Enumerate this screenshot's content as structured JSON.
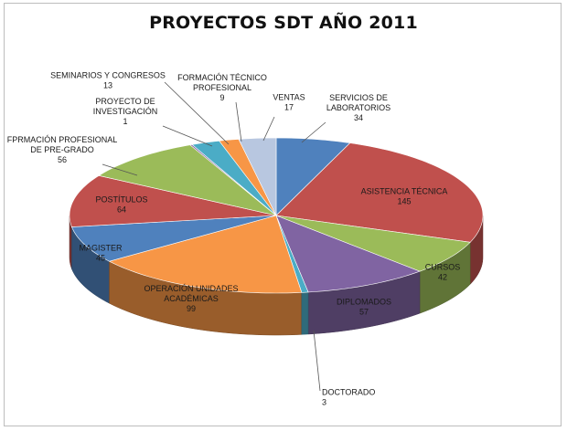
{
  "chart_data": {
    "type": "pie",
    "title": "PROYECTOS SDT AÑO 2011",
    "slices": [
      {
        "label": [
          "SERVICIOS DE",
          "LABORATORIOS"
        ],
        "value": 34,
        "value_text": "34",
        "color": "#4f81bd"
      },
      {
        "label": [
          "ASISTENCIA TÉCNICA"
        ],
        "value": 145,
        "value_text": "145",
        "color": "#c0504d"
      },
      {
        "label": [
          "CURSOS"
        ],
        "value": 42,
        "value_text": "42",
        "color": "#9bbb59"
      },
      {
        "label": [
          "DIPLOMADOS"
        ],
        "value": 57,
        "value_text": "57",
        "color": "#8064a2"
      },
      {
        "label": [
          "DOCTORADO"
        ],
        "value": 3,
        "value_text": "3",
        "color": "#4bacc6"
      },
      {
        "label": [
          "OPERACIÓN UNIDADES",
          "ACADÉMICAS"
        ],
        "value": 99,
        "value_text": "99",
        "color": "#f79646"
      },
      {
        "label": [
          "MAGISTER"
        ],
        "value": 45,
        "value_text": "45",
        "color": "#4f81bd"
      },
      {
        "label": [
          "POSTÍTULOS"
        ],
        "value": 64,
        "value_text": "64",
        "color": "#c0504d"
      },
      {
        "label": [
          "FPRMACIÓN PROFESIONAL",
          "DE PRE-GRADO"
        ],
        "value": 56,
        "value_text": "56",
        "color": "#9bbb59"
      },
      {
        "label": [
          "PROYECTO DE",
          "INVESTIGACIÓN"
        ],
        "value": 1,
        "value_text": "1",
        "color": "#8064a2"
      },
      {
        "label": [
          "SEMINARIOS Y CONGRESOS"
        ],
        "value": 13,
        "value_text": "13",
        "color": "#4bacc6"
      },
      {
        "label": [
          "FORMACIÓN TÉCNICO",
          "PROFESIONAL"
        ],
        "value": 9,
        "value_text": "9",
        "color": "#f79646"
      },
      {
        "label": [
          "VENTAS"
        ],
        "value": 17,
        "value_text": "17",
        "color": "#b8c7e0"
      }
    ]
  }
}
